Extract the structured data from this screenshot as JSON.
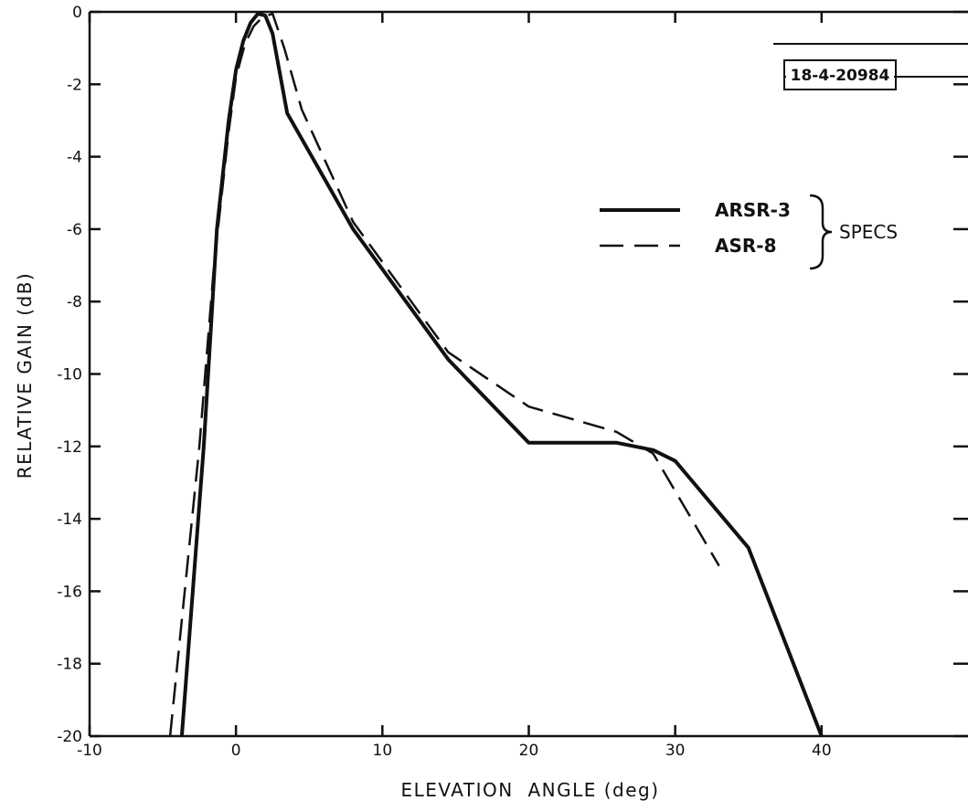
{
  "figure_id": "18-4-20984",
  "chart_data": {
    "type": "line",
    "title": "",
    "xlabel": "ELEVATION  ANGLE (deg)",
    "ylabel": "RELATIVE GAIN (dB)",
    "xlim": [
      -10,
      50
    ],
    "ylim": [
      -20,
      0
    ],
    "x_ticks": [
      -10,
      0,
      10,
      20,
      30,
      40
    ],
    "y_ticks": [
      0,
      -2,
      -4,
      -6,
      -8,
      -10,
      -12,
      -14,
      -16,
      -18,
      -20
    ],
    "x_tick_labels": [
      "-10",
      "0",
      "10",
      "20",
      "30",
      "40"
    ],
    "y_tick_labels": [
      "0",
      "-2",
      "-4",
      "-6",
      "-8",
      "-10",
      "-12",
      "-14",
      "-16",
      "-18",
      "-20"
    ],
    "grid": false,
    "legend_bracket_label": "SPECS",
    "series": [
      {
        "name": "ARSR-3",
        "style": "solid",
        "points": [
          [
            -3.7,
            -20
          ],
          [
            -2.2,
            -12
          ],
          [
            -1.3,
            -6
          ],
          [
            -0.5,
            -3
          ],
          [
            0,
            -1.6
          ],
          [
            0.5,
            -0.8
          ],
          [
            1,
            -0.3
          ],
          [
            1.5,
            -0.05
          ],
          [
            2,
            -0.1
          ],
          [
            2.5,
            -0.6
          ],
          [
            3.5,
            -2.8
          ],
          [
            8,
            -6.0
          ],
          [
            14.5,
            -9.6
          ],
          [
            20,
            -11.9
          ],
          [
            26,
            -11.9
          ],
          [
            28.5,
            -12.1
          ],
          [
            30,
            -12.4
          ],
          [
            35,
            -14.8
          ],
          [
            40,
            -20
          ]
        ]
      },
      {
        "name": "ASR-8",
        "style": "dashed",
        "points": [
          [
            -4.5,
            -20
          ],
          [
            -2.5,
            -12
          ],
          [
            -1.5,
            -7
          ],
          [
            -0.5,
            -3.3
          ],
          [
            0,
            -1.8
          ],
          [
            0.6,
            -0.9
          ],
          [
            1.2,
            -0.4
          ],
          [
            1.8,
            -0.15
          ],
          [
            2.5,
            -0.05
          ],
          [
            3.3,
            -1
          ],
          [
            4.5,
            -2.7
          ],
          [
            8,
            -5.8
          ],
          [
            14.5,
            -9.4
          ],
          [
            20,
            -10.9
          ],
          [
            26,
            -11.6
          ],
          [
            28.5,
            -12.2
          ],
          [
            33,
            -15.3
          ]
        ]
      }
    ]
  }
}
